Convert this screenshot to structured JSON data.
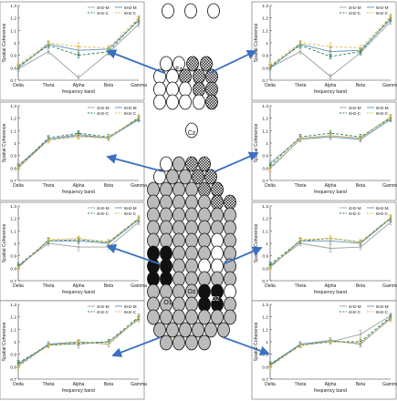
{
  "shared": {
    "xlabel": "frequency band",
    "ylabel": "Spatial Coherence",
    "categories": [
      "Delta",
      "Theta",
      "Alpha",
      "Beta",
      "Gamma"
    ],
    "yticks": [
      "0.7",
      "0.8",
      "0.9",
      "1",
      "1.1",
      "1.2",
      "1.3"
    ],
    "legend": [
      "4Hz-M",
      "6Hz-M",
      "4Hz-C",
      "6Hz-C"
    ],
    "colors": {
      "4Hz-M": "#9aa39a",
      "6Hz-M": "#5b8fb9",
      "4Hz-C": "#2e7d4f",
      "6Hz-C": "#e3b84a"
    }
  },
  "electrodes": {
    "fz": "Fz",
    "cz": "Cz",
    "o1": "O1",
    "oz": "Oz",
    "o2": "O2"
  },
  "chart_data": [
    {
      "type": "line",
      "panel": "left-1",
      "categories": [
        "Delta",
        "Theta",
        "Alpha",
        "Beta",
        "Gamma"
      ],
      "ylim": [
        0.7,
        1.3
      ],
      "series": [
        {
          "name": "4Hz-M",
          "values": [
            0.79,
            0.93,
            0.72,
            0.92,
            1.15
          ],
          "errors": [
            0.02,
            0.02,
            0.02,
            0.02,
            0.02
          ]
        },
        {
          "name": "6Hz-M",
          "values": [
            0.8,
            0.99,
            0.94,
            0.95,
            1.18
          ],
          "errors": [
            0.02,
            0.02,
            0.03,
            0.02,
            0.02
          ]
        },
        {
          "name": "4Hz-C",
          "values": [
            0.81,
            0.98,
            0.9,
            0.93,
            1.19
          ],
          "errors": [
            0.02,
            0.02,
            0.02,
            0.02,
            0.02
          ]
        },
        {
          "name": "6Hz-C",
          "values": [
            0.82,
            1.0,
            0.97,
            0.96,
            1.2
          ],
          "errors": [
            0.02,
            0.02,
            0.03,
            0.02,
            0.02
          ]
        }
      ]
    },
    {
      "type": "line",
      "panel": "right-1",
      "categories": [
        "Delta",
        "Theta",
        "Alpha",
        "Beta",
        "Gamma"
      ],
      "ylim": [
        0.7,
        1.3
      ],
      "series": [
        {
          "name": "4Hz-M",
          "values": [
            0.8,
            0.93,
            0.73,
            0.92,
            1.17
          ],
          "errors": [
            0.02,
            0.02,
            0.02,
            0.02,
            0.02
          ]
        },
        {
          "name": "6Hz-M",
          "values": [
            0.8,
            0.99,
            0.93,
            0.94,
            1.19
          ],
          "errors": [
            0.02,
            0.02,
            0.03,
            0.02,
            0.02
          ]
        },
        {
          "name": "4Hz-C",
          "values": [
            0.81,
            0.98,
            0.89,
            0.93,
            1.2
          ],
          "errors": [
            0.02,
            0.02,
            0.02,
            0.02,
            0.02
          ]
        },
        {
          "name": "6Hz-C",
          "values": [
            0.82,
            1.0,
            0.97,
            0.96,
            1.21
          ],
          "errors": [
            0.02,
            0.02,
            0.03,
            0.02,
            0.02
          ]
        }
      ]
    },
    {
      "type": "line",
      "panel": "left-2",
      "categories": [
        "Delta",
        "Theta",
        "Alpha",
        "Beta",
        "Gamma"
      ],
      "ylim": [
        0.7,
        1.3
      ],
      "series": [
        {
          "name": "4Hz-M",
          "values": [
            0.82,
            1.03,
            1.07,
            1.04,
            1.2
          ],
          "errors": [
            0.02,
            0.02,
            0.02,
            0.02,
            0.02
          ]
        },
        {
          "name": "6Hz-M",
          "values": [
            0.8,
            1.03,
            1.06,
            1.04,
            1.19
          ],
          "errors": [
            0.02,
            0.02,
            0.02,
            0.02,
            0.02
          ]
        },
        {
          "name": "4Hz-C",
          "values": [
            0.81,
            1.04,
            1.08,
            1.05,
            1.2
          ],
          "errors": [
            0.02,
            0.02,
            0.02,
            0.02,
            0.02
          ]
        },
        {
          "name": "6Hz-C",
          "values": [
            0.8,
            1.02,
            1.05,
            1.04,
            1.21
          ],
          "errors": [
            0.02,
            0.02,
            0.02,
            0.02,
            0.02
          ]
        }
      ]
    },
    {
      "type": "line",
      "panel": "right-2",
      "categories": [
        "Delta",
        "Theta",
        "Alpha",
        "Beta",
        "Gamma"
      ],
      "ylim": [
        0.7,
        1.3
      ],
      "series": [
        {
          "name": "4Hz-M",
          "values": [
            0.84,
            1.04,
            1.06,
            1.04,
            1.21
          ],
          "errors": [
            0.02,
            0.02,
            0.02,
            0.02,
            0.02
          ]
        },
        {
          "name": "6Hz-M",
          "values": [
            0.8,
            1.03,
            1.05,
            1.03,
            1.19
          ],
          "errors": [
            0.02,
            0.02,
            0.02,
            0.02,
            0.02
          ]
        },
        {
          "name": "4Hz-C",
          "values": [
            0.82,
            1.05,
            1.08,
            1.05,
            1.2
          ],
          "errors": [
            0.02,
            0.02,
            0.02,
            0.02,
            0.02
          ]
        },
        {
          "name": "6Hz-C",
          "values": [
            0.79,
            1.03,
            1.06,
            1.04,
            1.21
          ],
          "errors": [
            0.02,
            0.02,
            0.02,
            0.02,
            0.02
          ]
        }
      ]
    },
    {
      "type": "line",
      "panel": "left-3",
      "categories": [
        "Delta",
        "Theta",
        "Alpha",
        "Beta",
        "Gamma"
      ],
      "ylim": [
        0.7,
        1.3
      ],
      "series": [
        {
          "name": "4Hz-M",
          "values": [
            0.82,
            1.0,
            0.97,
            0.97,
            1.17
          ],
          "errors": [
            0.02,
            0.02,
            0.03,
            0.02,
            0.02
          ]
        },
        {
          "name": "6Hz-M",
          "values": [
            0.81,
            1.02,
            1.02,
            1.0,
            1.19
          ],
          "errors": [
            0.02,
            0.02,
            0.02,
            0.02,
            0.02
          ]
        },
        {
          "name": "4Hz-C",
          "values": [
            0.82,
            1.02,
            1.03,
            1.01,
            1.2
          ],
          "errors": [
            0.02,
            0.02,
            0.02,
            0.02,
            0.02
          ]
        },
        {
          "name": "6Hz-C",
          "values": [
            0.8,
            1.03,
            1.04,
            1.01,
            1.2
          ],
          "errors": [
            0.02,
            0.02,
            0.02,
            0.02,
            0.02
          ]
        }
      ]
    },
    {
      "type": "line",
      "panel": "right-3",
      "categories": [
        "Delta",
        "Theta",
        "Alpha",
        "Beta",
        "Gamma"
      ],
      "ylim": [
        0.7,
        1.3
      ],
      "series": [
        {
          "name": "4Hz-M",
          "values": [
            0.82,
            1.0,
            0.96,
            0.97,
            1.17
          ],
          "errors": [
            0.02,
            0.02,
            0.03,
            0.02,
            0.02
          ]
        },
        {
          "name": "6Hz-M",
          "values": [
            0.81,
            1.02,
            1.02,
            1.0,
            1.2
          ],
          "errors": [
            0.02,
            0.02,
            0.02,
            0.02,
            0.02
          ]
        },
        {
          "name": "4Hz-C",
          "values": [
            0.83,
            1.02,
            1.04,
            1.01,
            1.2
          ],
          "errors": [
            0.02,
            0.02,
            0.02,
            0.02,
            0.02
          ]
        },
        {
          "name": "6Hz-C",
          "values": [
            0.8,
            1.03,
            1.04,
            1.01,
            1.21
          ],
          "errors": [
            0.02,
            0.02,
            0.02,
            0.02,
            0.02
          ]
        }
      ]
    },
    {
      "type": "line",
      "panel": "left-4",
      "categories": [
        "Delta",
        "Theta",
        "Alpha",
        "Beta",
        "Gamma"
      ],
      "ylim": [
        0.7,
        1.3
      ],
      "series": [
        {
          "name": "4Hz-M",
          "values": [
            0.82,
            0.98,
            0.98,
            1.0,
            1.18
          ],
          "errors": [
            0.02,
            0.02,
            0.03,
            0.02,
            0.02
          ]
        },
        {
          "name": "6Hz-M",
          "values": [
            0.81,
            0.98,
            1.0,
            0.98,
            1.19
          ],
          "errors": [
            0.02,
            0.02,
            0.02,
            0.02,
            0.02
          ]
        },
        {
          "name": "4Hz-C",
          "values": [
            0.83,
            0.97,
            0.99,
            1.0,
            1.2
          ],
          "errors": [
            0.02,
            0.02,
            0.02,
            0.02,
            0.02
          ]
        },
        {
          "name": "6Hz-C",
          "values": [
            0.8,
            0.97,
            1.0,
            0.98,
            1.19
          ],
          "errors": [
            0.02,
            0.02,
            0.02,
            0.02,
            0.02
          ]
        }
      ]
    },
    {
      "type": "line",
      "panel": "right-4",
      "categories": [
        "Delta",
        "Theta",
        "Alpha",
        "Beta",
        "Gamma"
      ],
      "ylim": [
        0.7,
        1.3
      ],
      "series": [
        {
          "name": "4Hz-M",
          "values": [
            0.82,
            0.98,
            1.0,
            1.06,
            1.21
          ],
          "errors": [
            0.02,
            0.02,
            0.02,
            0.03,
            0.02
          ]
        },
        {
          "name": "6Hz-M",
          "values": [
            0.81,
            0.98,
            1.01,
            0.98,
            1.19
          ],
          "errors": [
            0.02,
            0.02,
            0.02,
            0.02,
            0.02
          ]
        },
        {
          "name": "4Hz-C",
          "values": [
            0.82,
            0.97,
            1.0,
            1.0,
            1.2
          ],
          "errors": [
            0.02,
            0.02,
            0.02,
            0.02,
            0.02
          ]
        },
        {
          "name": "6Hz-C",
          "values": [
            0.8,
            0.97,
            1.0,
            0.99,
            1.18
          ],
          "errors": [
            0.02,
            0.02,
            0.02,
            0.02,
            0.02
          ]
        }
      ]
    }
  ]
}
